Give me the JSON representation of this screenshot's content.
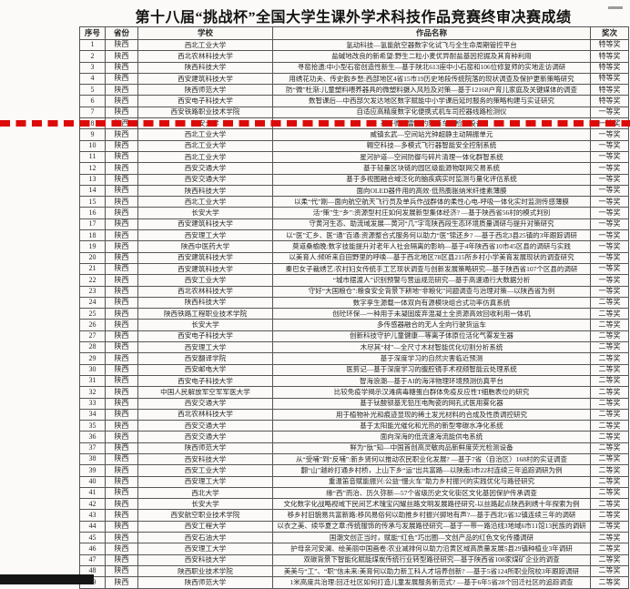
{
  "title": "第十八届“挑战杯”全国大学生课外学术科技作品竞赛终审决赛成绩",
  "highlight": {
    "row_no": "8",
    "color": "#dd0a0a"
  },
  "table": {
    "headers": [
      "序号",
      "省份",
      "学校",
      "作品名称",
      "奖次"
    ],
    "rows": [
      {
        "no": "1",
        "province": "陕西",
        "school": "西北工业大学",
        "work": "氢动科技—氢能航空器数字化试飞与全生命周期管控平台",
        "award": "特等奖"
      },
      {
        "no": "2",
        "province": "陕西",
        "school": "西北农林科技大学",
        "work": "盐碱地改良的新希望:野生二粒小麦优异耐盐基因挖掘及其育种利用",
        "award": "特等奖"
      },
      {
        "no": "3",
        "province": "陕西",
        "school": "陕西科技大学",
        "work": "寻窑拾遗:中小型石窑创造性新生—基于陕北613座中小石窑和106位修复师的实地走访调研",
        "award": "特等奖"
      },
      {
        "no": "4",
        "province": "陕西",
        "school": "西安建筑科技大学",
        "work": "用绣花功夫、传史韵乡愁:西部地区4省15市19历史地段传统院落的现状调查及保护更新策略研究",
        "award": "特等奖"
      },
      {
        "no": "5",
        "province": "陕西",
        "school": "陕西师范大学",
        "work": "防“微”杜渐:儿童塑料喂养器具的微塑料摄入风险及对策—基于12168户育儿家庭及关键媒体的调查",
        "award": "特等奖"
      },
      {
        "no": "6",
        "province": "陕西",
        "school": "西安电子科技大学",
        "work": "数智课后—中西部欠发达地区数字赋能中小学课后延时服务的策略构建与实证研究",
        "award": "特等奖"
      },
      {
        "no": "7",
        "province": "陕西",
        "school": "西安铁路职业技术学院",
        "work": "自适应高精度数字化便携式机车司控器线路检测仪",
        "award": "一等奖"
      },
      {
        "no": "8",
        "province": "陕西",
        "school": "长安大学",
        "work": "基于微波雷达的隧道车速检测设备",
        "award": "一等奖"
      },
      {
        "no": "9",
        "province": "陕西",
        "school": "西北工业大学",
        "work": "威镇玄武—空间站光钟超静主动隔振单元",
        "award": "一等奖"
      },
      {
        "no": "10",
        "province": "陕西",
        "school": "西北工业大学",
        "work": "翱空科技—多模式飞行器智能安全控制系统",
        "award": "一等奖"
      },
      {
        "no": "11",
        "province": "陕西",
        "school": "西北工业大学",
        "work": "星河护道—空间防御与碎片清理一体化群智系统",
        "award": "一等奖"
      },
      {
        "no": "12",
        "province": "陕西",
        "school": "西安交通大学",
        "work": "基于轻量区块链的园区级能源物联网交易系统",
        "award": "一等奖"
      },
      {
        "no": "13",
        "province": "陕西",
        "school": "西安交通大学",
        "work": "基于多视图融合域泛化的脑疾病实时监测与量化评估系统",
        "award": "一等奖"
      },
      {
        "no": "14",
        "province": "陕西",
        "school": "陕西科技大学",
        "work": "面向OLED器件用的高效·低热膨胀纳米纤维素薄膜",
        "award": "一等奖"
      },
      {
        "no": "15",
        "province": "陕西",
        "school": "西北工业大学",
        "work": "以柔“代”刚—面向航空航天飞行员及单兵作战群体的柔性心电-呼吸一体化实时监测传感薄膜",
        "award": "一等奖"
      },
      {
        "no": "16",
        "province": "陕西",
        "school": "长安大学",
        "work": "活“策”生“乡”:资源型村庄如何发展新型集体经济? —基于陕西省56村的模式判别",
        "award": "一等奖"
      },
      {
        "no": "17",
        "province": "陕西",
        "school": "西安建筑科技大学",
        "work": "守黄河生态、助流域发展—黄河“几”字弯陕西段生态环境质量调研与提升对策研究",
        "award": "一等奖"
      },
      {
        "no": "18",
        "province": "陕西",
        "school": "西安理工大学",
        "work": "以“医”汇乡、医“通”百通:资源整合式服务何以助力“医”锦还乡? —基于西北3县25镇的3年跟踪调研",
        "award": "一等奖"
      },
      {
        "no": "19",
        "province": "陕西",
        "school": "陕西中医药大学",
        "work": "莫道桑榆晚:数字技能提升对老年人社会隔离的影响—基于4年陕西省10市45区县的调研与实践",
        "award": "一等奖"
      },
      {
        "no": "20",
        "province": "陕西",
        "school": "西安建筑科技大学",
        "work": "以美育人:倾听来自田野里的呼唤—基于西北地区78区县215所乡村小学美育发展现状的调查研究",
        "award": "一等奖"
      },
      {
        "no": "21",
        "province": "陕西",
        "school": "西安建筑科技大学",
        "work": "秦巴女子裁绣艺:农村妇女传统手工艺现状调查与创新发展策略研究—基于陕西省107个区县的调研",
        "award": "一等奖"
      },
      {
        "no": "22",
        "province": "陕西",
        "school": "西安工业大学",
        "work": "“城市摆渡人”识别预警与营运规范研究—基于高速通行大数据分析",
        "award": "一等奖"
      },
      {
        "no": "23",
        "province": "陕西",
        "school": "西北农林科技大学",
        "work": "守好“大国粮仓”:粮食安全背景下耕地“非粮化”问题调查与治理对策—以陕西省为例",
        "award": "一等奖"
      },
      {
        "no": "24",
        "province": "陕西",
        "school": "陕西科技大学",
        "work": "数字孪生源载一体双向有源模块组合式功率仿真系统",
        "award": "二等奖"
      },
      {
        "no": "25",
        "province": "陕西",
        "school": "陕西铁路工程职业技术学院",
        "work": "创砼环保—一种用于未凝固废弃混凝土全资源高效回收利用一体机",
        "award": "二等奖"
      },
      {
        "no": "26",
        "province": "陕西",
        "school": "长安大学",
        "work": "多传感器融合的无人全向行驶货运车",
        "award": "二等奖"
      },
      {
        "no": "27",
        "province": "陕西",
        "school": "西安电子科技大学",
        "work": "创新科技守护儿童健康—等离子体原位活化气雾发生器",
        "award": "二等奖"
      },
      {
        "no": "28",
        "province": "陕西",
        "school": "西安理工大学",
        "work": "木尽其“材”—全尺寸木材智能优化切割分析系统",
        "award": "二等奖"
      },
      {
        "no": "29",
        "province": "陕西",
        "school": "西安翻译学院",
        "work": "基于深度学习的自然灾害临近预测",
        "award": "二等奖"
      },
      {
        "no": "30",
        "province": "陕西",
        "school": "西安邮电大学",
        "work": "医剪记—基于深度学习的腹腔镜手术视频智能云处理系统",
        "award": "二等奖"
      },
      {
        "no": "31",
        "province": "陕西",
        "school": "西安电子科技大学",
        "work": "智海浪潮—基于AI的海洋物理环境预测仿真平台",
        "award": "二等奖"
      },
      {
        "no": "32",
        "province": "陕西",
        "school": "中国人民解放军空军军医大学",
        "work": "比较免疫学揭示汉滩病毒糖蛋白群体免疫反应性T细胞表位的研究",
        "award": "二等奖"
      },
      {
        "no": "33",
        "province": "陕西",
        "school": "西安交通大学",
        "work": "基于钛酸钡基无铅压电陶瓷的网孔式医用雾化器",
        "award": "二等奖"
      },
      {
        "no": "34",
        "province": "陕西",
        "school": "西北农林科技大学",
        "work": "用于植物补光和痕迹显现的稀土发光材料的合成及性质调控研究",
        "award": "二等奖"
      },
      {
        "no": "35",
        "province": "陕西",
        "school": "西安交通大学",
        "work": "基于太阳能光催化和光热的新型零碳水净化系统",
        "award": "二等奖"
      },
      {
        "no": "36",
        "province": "陕西",
        "school": "西安交通大学",
        "work": "面向深海的低流速海流能供电系统",
        "award": "二等奖"
      },
      {
        "no": "37",
        "province": "陕西",
        "school": "陕西师范大学",
        "work": "鲜为“肽”知—中国首创高灵敏肉品新鲜度荧光检测设备",
        "award": "二等奖"
      },
      {
        "no": "38",
        "province": "陕西",
        "school": "西安科技大学",
        "work": "从“受哺”到“反哺”:新乡贤何以推动农民职业化发展? —基于7省（自治区）168村的实证调查",
        "award": "二等奖"
      },
      {
        "no": "39",
        "province": "陕西",
        "school": "西安工业大学",
        "work": "翻“山”越岭打通乡村桥，上山下乡“运”出共富路—以陕南3市22村连续三年追踪调研为例",
        "award": "二等奖"
      },
      {
        "no": "40",
        "province": "陕西",
        "school": "西安理工大学",
        "work": "重温笛音赋能振兴:公益“慢火车”助力乡村振兴的实践优化与路径研究",
        "award": "二等奖"
      },
      {
        "no": "41",
        "province": "陕西",
        "school": "西北大学",
        "work": "缘“西”而治、历久弥新—57个省级历史文化街区文化基因保护传承调查",
        "award": "二等奖"
      },
      {
        "no": "42",
        "province": "陕西",
        "school": "长安大学",
        "work": "文化数字化战略视域下民间艺术瑰宝闪耀丝路文明发展路径研究-以丝路起点陕西刺绣十年探索为例",
        "award": "二等奖"
      },
      {
        "no": "43",
        "province": "陕西",
        "school": "西安航空职业技术学院",
        "work": "移乡村旧貌易共富新路:移风易俗何以助推乡村振兴掷地有声?—基于西北5省32镇连续三年的调研",
        "award": "二等奖"
      },
      {
        "no": "44",
        "province": "陕西",
        "school": "西安工程大学",
        "work": "以衣之美、续华夏之章:传统服饰的传承与发展路径研究—基于一带一路沿线3地域6市11馆13民族的调研",
        "award": "二等奖"
      },
      {
        "no": "45",
        "province": "陕西",
        "school": "西安石油大学",
        "work": "国潮文创正当时，赋能“红色”巧出圈—文创产品的红色文化传播调研",
        "award": "二等奖"
      },
      {
        "no": "46",
        "province": "陕西",
        "school": "西安理工大学",
        "work": "护母亲河安澜、绘美丽中国画卷:农业减排何以助力沿黄区域高质量发展5县29镇种植业3年调研",
        "award": "二等奖"
      },
      {
        "no": "47",
        "province": "陕西",
        "school": "西安科技大学",
        "work": "双碳背景下智能化赋能煤炭传统行业转型路径研究—基于陕西省108家煤矿企业的调查",
        "award": "二等奖"
      },
      {
        "no": "48",
        "province": "陕西",
        "school": "陕西职业技术学院",
        "work": "美美与“工”、“职”信未来:美育何以助力新工科人才培养创新? —基于5省124所职业院校3年跟踪调研",
        "award": "二等奖"
      },
      {
        "no": "49",
        "province": "陕西",
        "school": "陕西师范大学",
        "work": "1米高度共治理:回迁社区如何打造儿童发展服务新范式? —基于6年5省28个回迁社区的追踪调查",
        "award": "二等奖"
      }
    ]
  }
}
